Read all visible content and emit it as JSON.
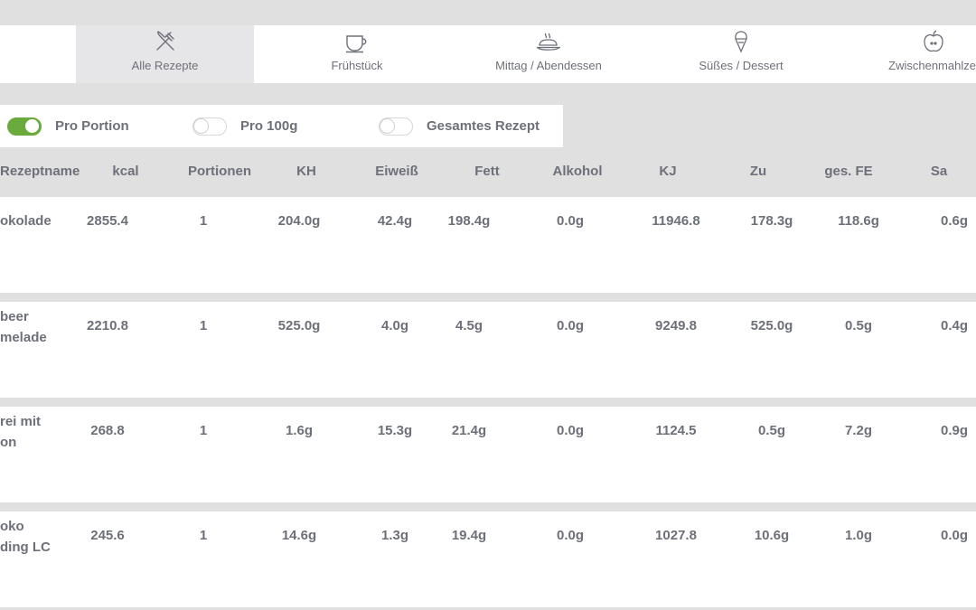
{
  "tabs": [
    {
      "label": "Alle Rezepte",
      "icon": "fork-knife-icon",
      "active": true
    },
    {
      "label": "Frühstück",
      "icon": "coffee-cup-icon",
      "active": false
    },
    {
      "label": "Mittag / Abendessen",
      "icon": "roast-dish-icon",
      "active": false
    },
    {
      "label": "Süßes / Dessert",
      "icon": "ice-cream-icon",
      "active": false
    },
    {
      "label": "Zwischenmahlzei",
      "icon": "apple-icon",
      "active": false
    }
  ],
  "toggles": [
    {
      "label": "Pro Portion",
      "on": true
    },
    {
      "label": "Pro 100g",
      "on": false
    },
    {
      "label": "Gesamtes Rezept",
      "on": false
    }
  ],
  "table": {
    "headers": [
      "Rezeptname",
      "kcal",
      "Portionen",
      "KH",
      "Eiweiß",
      "Fett",
      "Alkohol",
      "KJ",
      "Zu",
      "ges. FE",
      "Sa"
    ],
    "rows": [
      {
        "name": "okolade",
        "name2": "",
        "values": [
          "2855.4",
          "1",
          "204.0g",
          "42.4g",
          "198.4g",
          "0.0g",
          "11946.8",
          "178.3g",
          "118.6g",
          "0.6g"
        ]
      },
      {
        "name": "beer",
        "name2": "melade",
        "values": [
          "2210.8",
          "1",
          "525.0g",
          "4.0g",
          "4.5g",
          "0.0g",
          "9249.8",
          "525.0g",
          "0.5g",
          "0.4g"
        ]
      },
      {
        "name": "rei mit",
        "name2": "on",
        "values": [
          "268.8",
          "1",
          "1.6g",
          "15.3g",
          "21.4g",
          "0.0g",
          "1124.5",
          "0.5g",
          "7.2g",
          "0.9g"
        ]
      },
      {
        "name": "oko",
        "name2": "ding LC",
        "values": [
          "245.6",
          "1",
          "14.6g",
          "1.3g",
          "19.4g",
          "0.0g",
          "1027.8",
          "10.6g",
          "1.0g",
          "0.0g"
        ]
      }
    ]
  },
  "colors": {
    "accent": "#6bab3d",
    "text": "#6e7079",
    "background": "#e0e0e1"
  }
}
